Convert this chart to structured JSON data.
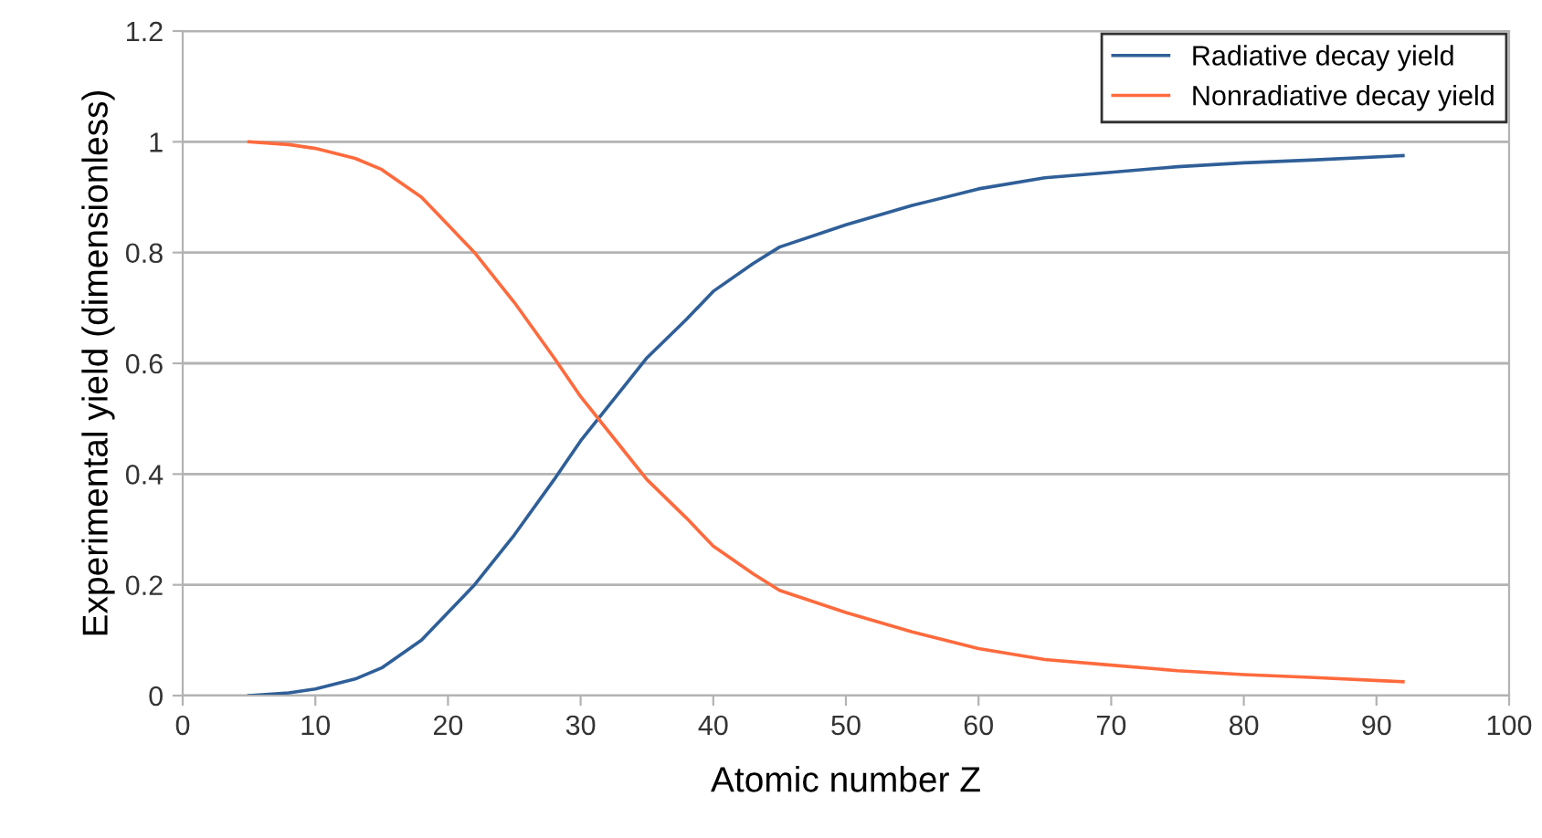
{
  "chart_data": {
    "type": "line",
    "xlabel": "Atomic number Z",
    "ylabel": "Experimental yield (dimensionless)",
    "xlim": [
      0,
      100
    ],
    "xticks": [
      0,
      10,
      20,
      30,
      40,
      50,
      60,
      70,
      80,
      90,
      100
    ],
    "ylim": [
      0,
      1.2
    ],
    "yticks": [
      0,
      0.2,
      0.4,
      0.6,
      0.8,
      1,
      1.2
    ],
    "grid": "y",
    "legend": "top right",
    "marker": "none",
    "line_style": "solid",
    "series": [
      {
        "name": "Radiative decay yield",
        "color": "#2f5f98",
        "x": [
          5,
          8,
          10,
          13,
          15,
          18,
          20,
          22,
          25,
          28,
          30,
          33,
          35,
          38,
          40,
          43,
          45,
          50,
          55,
          60,
          65,
          70,
          75,
          80,
          85,
          92
        ],
        "values": [
          0,
          0.005,
          0.012,
          0.03,
          0.05,
          0.1,
          0.15,
          0.2,
          0.29,
          0.39,
          0.46,
          0.55,
          0.61,
          0.68,
          0.73,
          0.78,
          0.81,
          0.85,
          0.885,
          0.915,
          0.935,
          0.945,
          0.955,
          0.962,
          0.967,
          0.975
        ]
      },
      {
        "name": "Nonradiative decay yield",
        "color": "#ff6a3d",
        "x": [
          5,
          8,
          10,
          13,
          15,
          18,
          20,
          22,
          25,
          28,
          30,
          33,
          35,
          38,
          40,
          43,
          45,
          50,
          55,
          60,
          65,
          70,
          75,
          80,
          85,
          92
        ],
        "values": [
          1,
          0.995,
          0.988,
          0.97,
          0.95,
          0.9,
          0.85,
          0.8,
          0.71,
          0.61,
          0.54,
          0.45,
          0.39,
          0.32,
          0.27,
          0.22,
          0.19,
          0.15,
          0.115,
          0.085,
          0.065,
          0.055,
          0.045,
          0.038,
          0.033,
          0.025
        ]
      }
    ]
  }
}
